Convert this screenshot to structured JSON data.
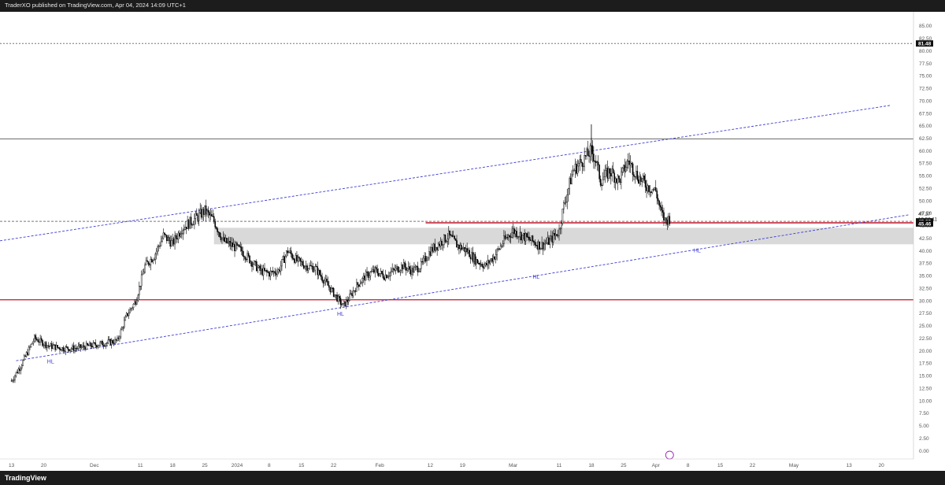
{
  "header": {
    "text": "TraderXO published on TradingView.com, Apr 04, 2024 14:09 UTC+1"
  },
  "footer": {
    "logo_text": "TradingView"
  },
  "colors": {
    "up": "#ffffff",
    "down": "#000000",
    "wick": "#000000",
    "channel": "#3d3dd6",
    "red_level": "#c0182c",
    "zone": "#d9d9d9",
    "grey_level": "#666666",
    "dotted_level": "#777777"
  },
  "chart_data": {
    "type": "candlestick",
    "title": "",
    "xlabel": "",
    "ylabel": "",
    "ylim": [
      -1.5,
      87.5
    ],
    "y_ticks": [
      "0.00",
      "2.50",
      "5.00",
      "7.50",
      "10.00",
      "12.50",
      "15.00",
      "17.50",
      "20.00",
      "22.50",
      "25.00",
      "27.50",
      "30.00",
      "32.50",
      "35.00",
      "37.50",
      "40.00",
      "42.50",
      "45.00",
      "47.50",
      "50.00",
      "52.50",
      "55.00",
      "57.50",
      "60.00",
      "62.50",
      "65.00",
      "67.50",
      "70.00",
      "72.50",
      "75.00",
      "77.50",
      "80.00",
      "82.50",
      "85.00"
    ],
    "x_ticks": [
      {
        "label": "13",
        "day": 0
      },
      {
        "label": "20",
        "day": 7
      },
      {
        "label": "Dec",
        "day": 18
      },
      {
        "label": "11",
        "day": 28
      },
      {
        "label": "18",
        "day": 35
      },
      {
        "label": "25",
        "day": 42
      },
      {
        "label": "2024",
        "day": 49
      },
      {
        "label": "8",
        "day": 56
      },
      {
        "label": "15",
        "day": 63
      },
      {
        "label": "22",
        "day": 70
      },
      {
        "label": "Feb",
        "day": 80
      },
      {
        "label": "12",
        "day": 91
      },
      {
        "label": "19",
        "day": 98
      },
      {
        "label": "Mar",
        "day": 109
      },
      {
        "label": "11",
        "day": 119
      },
      {
        "label": "18",
        "day": 126
      },
      {
        "label": "25",
        "day": 133
      },
      {
        "label": "Apr",
        "day": 140
      },
      {
        "label": "8",
        "day": 147
      },
      {
        "label": "15",
        "day": 154
      },
      {
        "label": "22",
        "day": 161
      },
      {
        "label": "May",
        "day": 170
      },
      {
        "label": "13",
        "day": 182
      },
      {
        "label": "20",
        "day": 189
      }
    ],
    "x_range_days": [
      -2.5,
      196
    ],
    "price_labels": [
      {
        "text": "81.48",
        "value": 81.48,
        "style": "dark"
      },
      {
        "text": "47.37",
        "value": 47.37,
        "style": "plain"
      },
      {
        "text": "10:50:11",
        "value": 46.4,
        "style": "plain"
      },
      {
        "text": "45.89",
        "value": 45.89,
        "style": "dark"
      },
      {
        "text": "45.46",
        "value": 45.46,
        "style": "dark"
      }
    ],
    "levels": [
      {
        "value": 81.48,
        "style": "dotted",
        "from_day": -2.5
      },
      {
        "value": 62.4,
        "style": "grey",
        "from_day": -2.5
      },
      {
        "value": 45.89,
        "style": "dashed-grey",
        "from_day": -2.5
      },
      {
        "value": 45.6,
        "style": "red-thin",
        "from_day": 90
      },
      {
        "value": 30.2,
        "style": "red",
        "from_day": -2.5
      }
    ],
    "zone": {
      "low": 41.3,
      "high": 44.6,
      "from_day": 44
    },
    "channel": [
      {
        "p1": {
          "day": -2.5,
          "value": 42.0
        },
        "p2": {
          "day": 191,
          "value": 69.1
        }
      },
      {
        "p1": {
          "day": 1,
          "value": 18.0
        },
        "p2": {
          "day": 195,
          "value": 47.2
        }
      }
    ],
    "annotations": [
      {
        "text": "HL",
        "day": 8.5,
        "value": 17.5
      },
      {
        "text": "HL",
        "day": 71.5,
        "value": 27.0
      },
      {
        "text": "HL",
        "day": 114,
        "value": 34.4
      },
      {
        "text": "HL",
        "day": 149,
        "value": 39.7
      }
    ],
    "anchors": [
      [
        0,
        14.0
      ],
      [
        2,
        17.0
      ],
      [
        5,
        22.5
      ],
      [
        8,
        21.0
      ],
      [
        11,
        20.5
      ],
      [
        14,
        20.5
      ],
      [
        17,
        21.0
      ],
      [
        20,
        21.5
      ],
      [
        23,
        22.0
      ],
      [
        25,
        27.0
      ],
      [
        27,
        30.0
      ],
      [
        29,
        37.0
      ],
      [
        31,
        39.0
      ],
      [
        33,
        43.0
      ],
      [
        35,
        41.5
      ],
      [
        37,
        44.5
      ],
      [
        40,
        46.5
      ],
      [
        42,
        48.0
      ],
      [
        44,
        46.0
      ],
      [
        46,
        42.0
      ],
      [
        48,
        41.0
      ],
      [
        50,
        40.0
      ],
      [
        52,
        38.0
      ],
      [
        54,
        36.0
      ],
      [
        56,
        35.5
      ],
      [
        58,
        36.0
      ],
      [
        60,
        40.0
      ],
      [
        62,
        38.0
      ],
      [
        64,
        37.0
      ],
      [
        66,
        36.5
      ],
      [
        68,
        34.0
      ],
      [
        70,
        31.5
      ],
      [
        72,
        29.0
      ],
      [
        73,
        30.0
      ],
      [
        75,
        33.0
      ],
      [
        77,
        35.0
      ],
      [
        79,
        36.0
      ],
      [
        81,
        35.0
      ],
      [
        83,
        36.0
      ],
      [
        85,
        37.0
      ],
      [
        87,
        36.0
      ],
      [
        89,
        37.0
      ],
      [
        91,
        40.0
      ],
      [
        93,
        41.5
      ],
      [
        95,
        43.0
      ],
      [
        97,
        41.0
      ],
      [
        99,
        40.0
      ],
      [
        101,
        38.0
      ],
      [
        103,
        37.0
      ],
      [
        105,
        39.0
      ],
      [
        107,
        42.0
      ],
      [
        109,
        44.0
      ],
      [
        111,
        43.0
      ],
      [
        113,
        42.0
      ],
      [
        115,
        41.0
      ],
      [
        117,
        42.0
      ],
      [
        119,
        44.0
      ],
      [
        120,
        49.0
      ],
      [
        122,
        56.0
      ],
      [
        124,
        58.0
      ],
      [
        126,
        60.0
      ],
      [
        127,
        58.0
      ],
      [
        128,
        54.0
      ],
      [
        130,
        56.0
      ],
      [
        132,
        54.0
      ],
      [
        134,
        58.0
      ],
      [
        136,
        55.0
      ],
      [
        138,
        53.0
      ],
      [
        140,
        52.0
      ],
      [
        141,
        48.0
      ],
      [
        142,
        46.0
      ],
      [
        143,
        46.5
      ]
    ]
  }
}
